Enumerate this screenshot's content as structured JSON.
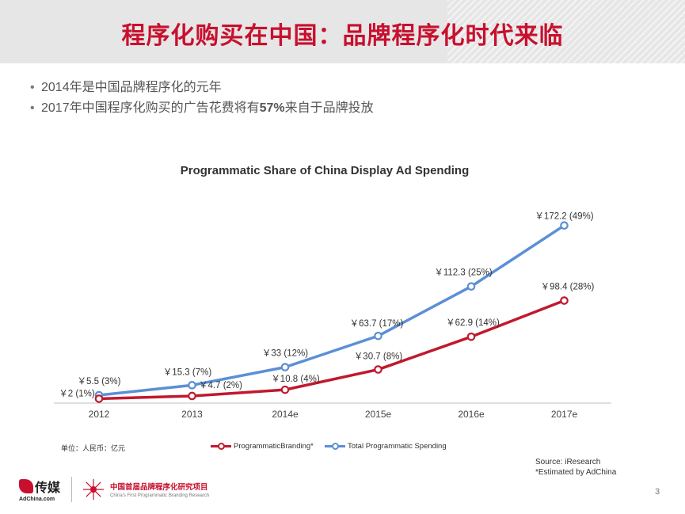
{
  "header": {
    "title": "程序化购买在中国：品牌程序化时代来临"
  },
  "bullets": [
    {
      "text": "2014年是中国品牌程序化的元年"
    },
    {
      "before": "2017年中国程序化购买的广告花费将有",
      "bold": "57%",
      "after": "来自于品牌投放"
    }
  ],
  "bullet_symbol": "•",
  "chart_data": {
    "type": "line",
    "title": "Programmatic Share of China Display Ad Spending",
    "categories": [
      "2012",
      "2013",
      "2014e",
      "2015e",
      "2016e",
      "2017e"
    ],
    "unit_note": "单位：人民币：亿元",
    "series": [
      {
        "name": "Total Programmatic Spending",
        "color": "#5b8fd6",
        "values": [
          5.5,
          15.3,
          33,
          63.7,
          112.3,
          172.2
        ],
        "labels": [
          "￥5.5 (3%)",
          "￥15.3 (7%)",
          "￥33 (12%)",
          "￥63.7 (17%)",
          "￥112.3 (25%)",
          "￥172.2 (49%)"
        ]
      },
      {
        "name": "ProgrammaticBranding*",
        "color": "#c0192e",
        "values": [
          2,
          4.7,
          10.8,
          30.7,
          62.9,
          98.4
        ],
        "labels": [
          "￥2 (1%)",
          "￥4.7 (2%)",
          "￥10.8 (4%)",
          "￥30.7 (8%)",
          "￥62.9 (14%)",
          "￥98.4 (28%)"
        ]
      }
    ],
    "legend_order": [
      1,
      0
    ],
    "ylim": [
      0,
      180
    ],
    "grid": false,
    "legend_position": "bottom"
  },
  "source": {
    "line1": "Source: iResearch",
    "line2": "*Estimated by AdChina"
  },
  "footer": {
    "logo1_name": "传媒",
    "logo1_sub": "AdChina.com",
    "logo2_cn": "中国首届品牌程序化研究项目",
    "logo2_en": "China's First Programmatic Branding Research"
  },
  "page_number": "3",
  "colors": {
    "accent": "#c8102e",
    "header_bg": "#e6e6e6"
  }
}
